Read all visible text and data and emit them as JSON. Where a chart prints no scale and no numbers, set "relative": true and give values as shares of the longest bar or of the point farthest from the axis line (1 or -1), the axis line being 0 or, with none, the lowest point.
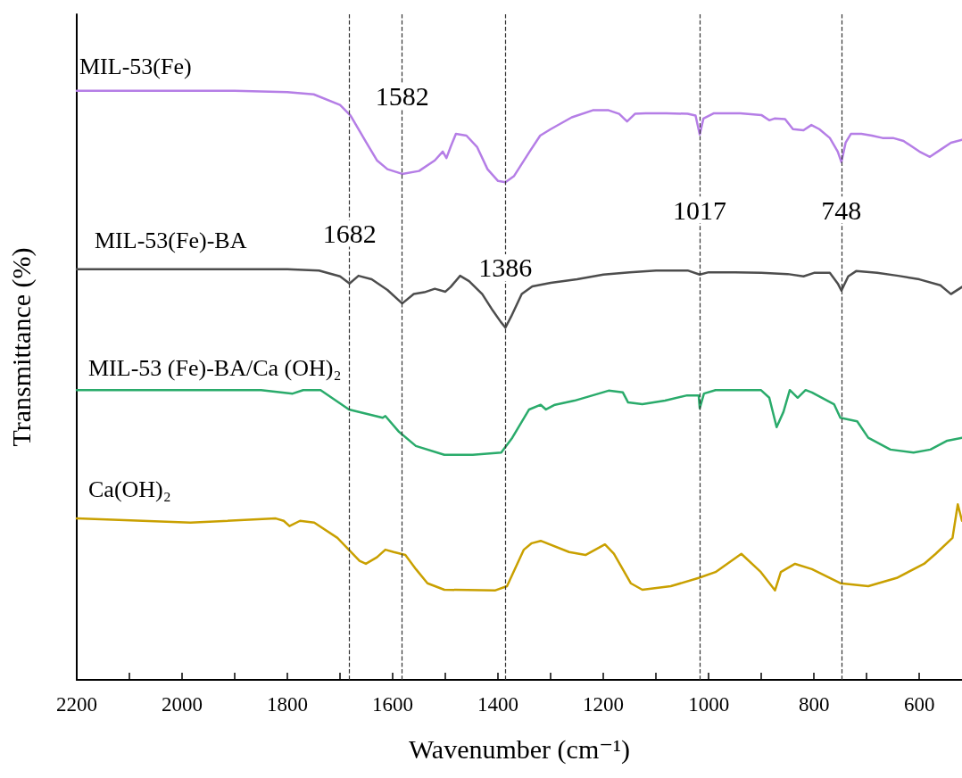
{
  "chart_data": {
    "type": "line",
    "relative": true,
    "xlabel": "Wavenumber (cm⁻¹)",
    "ylabel": "Transmittance (%)",
    "xlim": [
      2200,
      519
    ],
    "xticks": [
      2200,
      {
        "value": 2100,
        "label": null
      },
      2000,
      {
        "value": 1900,
        "label": null
      },
      1800,
      {
        "value": 1700,
        "label": null
      },
      1600,
      {
        "value": 1500,
        "label": null
      },
      1400,
      {
        "value": 1300,
        "label": null
      },
      1200,
      {
        "value": 1100,
        "label": null
      },
      1000,
      {
        "value": 900,
        "label": null
      },
      800,
      {
        "value": 700,
        "label": null
      },
      600
    ],
    "series": [
      {
        "name": "MIL-53(Fe)",
        "color": "#b57ee6",
        "x": [
          2200,
          1900,
          1800,
          1750,
          1700,
          1680,
          1650,
          1630,
          1610,
          1582,
          1550,
          1520,
          1505,
          1498,
          1490,
          1480,
          1460,
          1440,
          1420,
          1400,
          1386,
          1370,
          1340,
          1320,
          1300,
          1260,
          1220,
          1190,
          1170,
          1155,
          1140,
          1120,
          1080,
          1040,
          1025,
          1017,
          1010,
          990,
          940,
          900,
          885,
          875,
          855,
          840,
          820,
          805,
          790,
          770,
          755,
          748,
          740,
          730,
          710,
          690,
          670,
          650,
          630,
          600,
          580,
          560,
          540,
          519
        ],
        "values": [
          1.0,
          1.0,
          0.998,
          0.994,
          0.976,
          0.958,
          0.912,
          0.882,
          0.867,
          0.859,
          0.864,
          0.882,
          0.897,
          0.886,
          0.905,
          0.927,
          0.924,
          0.905,
          0.867,
          0.847,
          0.845,
          0.855,
          0.897,
          0.924,
          0.935,
          0.955,
          0.967,
          0.967,
          0.961,
          0.948,
          0.961,
          0.962,
          0.962,
          0.961,
          0.958,
          0.926,
          0.953,
          0.962,
          0.962,
          0.959,
          0.95,
          0.953,
          0.952,
          0.935,
          0.933,
          0.942,
          0.935,
          0.92,
          0.897,
          0.879,
          0.912,
          0.927,
          0.927,
          0.924,
          0.92,
          0.92,
          0.915,
          0.897,
          0.888,
          0.9,
          0.912,
          0.917
        ]
      },
      {
        "name": "MIL-53(Fe)-BA",
        "color": "#4d4d4d",
        "x": [
          2200,
          1800,
          1740,
          1700,
          1682,
          1665,
          1640,
          1610,
          1582,
          1560,
          1540,
          1520,
          1500,
          1490,
          1472,
          1455,
          1430,
          1410,
          1395,
          1386,
          1375,
          1355,
          1335,
          1300,
          1250,
          1200,
          1150,
          1100,
          1040,
          1017,
          1000,
          950,
          900,
          850,
          820,
          800,
          770,
          755,
          748,
          735,
          720,
          680,
          640,
          600,
          560,
          540,
          519
        ],
        "values": [
          0.697,
          0.697,
          0.695,
          0.685,
          0.673,
          0.686,
          0.68,
          0.662,
          0.639,
          0.655,
          0.658,
          0.664,
          0.659,
          0.667,
          0.686,
          0.677,
          0.655,
          0.627,
          0.608,
          0.598,
          0.617,
          0.655,
          0.668,
          0.674,
          0.68,
          0.688,
          0.692,
          0.695,
          0.695,
          0.688,
          0.692,
          0.692,
          0.691,
          0.689,
          0.685,
          0.691,
          0.691,
          0.673,
          0.661,
          0.685,
          0.694,
          0.691,
          0.686,
          0.68,
          0.67,
          0.655,
          0.667
        ]
      },
      {
        "name": "MIL-53 (Fe)-BA/Ca (OH)₂",
        "color": "#2aab6b",
        "x": [
          2200,
          1850,
          1790,
          1770,
          1737,
          1683,
          1619,
          1614,
          1588,
          1556,
          1502,
          1448,
          1394,
          1373,
          1341,
          1319,
          1309,
          1292,
          1255,
          1190,
          1163,
          1153,
          1126,
          1083,
          1041,
          1019,
          1017,
          1009,
          987,
          901,
          885,
          871,
          858,
          846,
          831,
          816,
          804,
          762,
          750,
          718,
          697,
          655,
          611,
          579,
          547,
          519
        ],
        "values": [
          0.492,
          0.492,
          0.486,
          0.492,
          0.492,
          0.459,
          0.445,
          0.448,
          0.421,
          0.397,
          0.382,
          0.382,
          0.386,
          0.411,
          0.459,
          0.467,
          0.459,
          0.467,
          0.474,
          0.491,
          0.488,
          0.471,
          0.468,
          0.474,
          0.483,
          0.483,
          0.461,
          0.486,
          0.492,
          0.492,
          0.479,
          0.429,
          0.455,
          0.492,
          0.479,
          0.492,
          0.488,
          0.468,
          0.445,
          0.439,
          0.411,
          0.391,
          0.386,
          0.391,
          0.406,
          0.411
        ]
      },
      {
        "name": "Ca(OH)₂",
        "color": "#c9a000",
        "x": [
          2200,
          1984,
          1822,
          1807,
          1796,
          1776,
          1749,
          1705,
          1663,
          1651,
          1630,
          1614,
          1598,
          1576,
          1556,
          1534,
          1502,
          1405,
          1383,
          1351,
          1336,
          1319,
          1265,
          1234,
          1197,
          1180,
          1148,
          1126,
          1072,
          1019,
          987,
          938,
          901,
          874,
          863,
          836,
          804,
          750,
          697,
          643,
          591,
          569,
          537,
          527,
          519
        ],
        "values": [
          0.274,
          0.267,
          0.274,
          0.27,
          0.261,
          0.27,
          0.267,
          0.241,
          0.202,
          0.197,
          0.208,
          0.221,
          0.217,
          0.212,
          0.188,
          0.164,
          0.153,
          0.152,
          0.159,
          0.221,
          0.232,
          0.236,
          0.217,
          0.212,
          0.23,
          0.214,
          0.164,
          0.153,
          0.159,
          0.173,
          0.183,
          0.214,
          0.183,
          0.152,
          0.183,
          0.197,
          0.188,
          0.164,
          0.159,
          0.173,
          0.197,
          0.214,
          0.241,
          0.298,
          0.27
        ]
      }
    ],
    "ref_lines": [
      {
        "axis": "x",
        "value": 1682,
        "line_style": "dashed",
        "color": "#333333"
      },
      {
        "axis": "x",
        "value": 1582,
        "line_style": "dashed",
        "color": "#333333"
      },
      {
        "axis": "x",
        "value": 1386,
        "line_style": "dashed",
        "color": "#333333"
      },
      {
        "axis": "x",
        "value": 1017,
        "line_style": "dashed",
        "color": "#333333"
      },
      {
        "axis": "x",
        "value": 748,
        "line_style": "dashed",
        "color": "#333333"
      }
    ],
    "annotations": [
      {
        "text": "1582",
        "x": 1582,
        "y": 0.991
      },
      {
        "text": "1682",
        "x": 1682,
        "y": 0.758
      },
      {
        "text": "1386",
        "x": 1386,
        "y": 0.7
      },
      {
        "text": "1017",
        "x": 1017,
        "y": 0.798
      },
      {
        "text": "748",
        "x": 748,
        "y": 0.798
      }
    ]
  }
}
